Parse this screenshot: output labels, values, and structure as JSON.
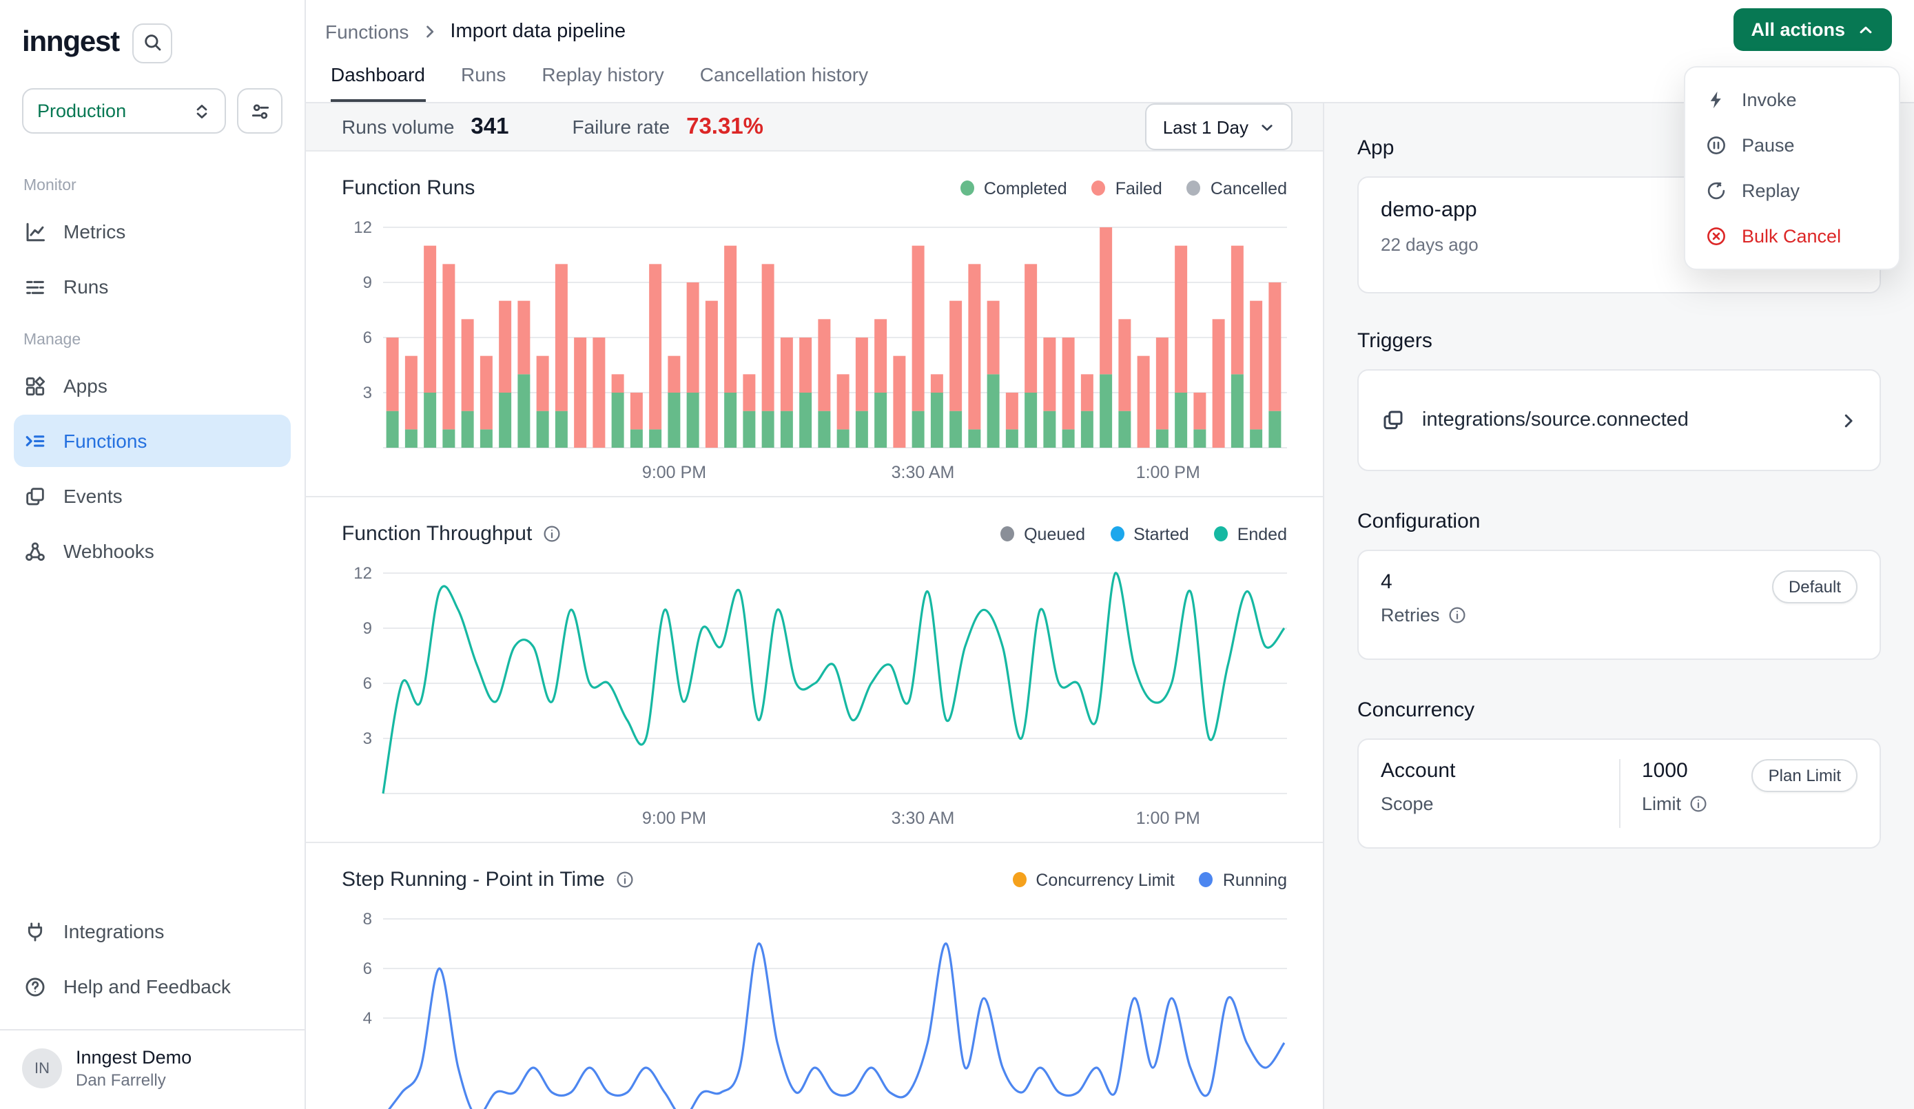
{
  "sidebar": {
    "logo_text": "inngest",
    "environment": "Production",
    "groups": [
      {
        "label": "Monitor",
        "items": [
          {
            "label": "Metrics"
          },
          {
            "label": "Runs"
          }
        ]
      },
      {
        "label": "Manage",
        "items": [
          {
            "label": "Apps"
          },
          {
            "label": "Functions"
          },
          {
            "label": "Events"
          },
          {
            "label": "Webhooks"
          }
        ]
      }
    ],
    "footer_items": [
      {
        "label": "Integrations"
      },
      {
        "label": "Help and Feedback"
      }
    ],
    "user": {
      "initials": "IN",
      "org": "Inngest Demo",
      "name": "Dan Farrelly"
    }
  },
  "header": {
    "breadcrumb": [
      "Functions",
      "Import data pipeline"
    ],
    "tabs": [
      "Dashboard",
      "Runs",
      "Replay history",
      "Cancellation history"
    ],
    "actions_button": "All actions"
  },
  "actions_menu": [
    {
      "label": "Invoke"
    },
    {
      "label": "Pause"
    },
    {
      "label": "Replay"
    },
    {
      "label": "Bulk Cancel",
      "danger": true
    }
  ],
  "stats": {
    "runs_volume_label": "Runs volume",
    "runs_volume": "341",
    "failure_rate_label": "Failure rate",
    "failure_rate": "73.31%",
    "time_range": "Last 1 Day"
  },
  "panel": {
    "app": {
      "heading": "App",
      "name": "demo-app",
      "synced": "22 days ago"
    },
    "triggers": {
      "heading": "Triggers",
      "event": "integrations/source.connected"
    },
    "configuration": {
      "heading": "Configuration",
      "retries_value": "4",
      "retries_label": "Retries",
      "badge": "Default"
    },
    "concurrency": {
      "heading": "Concurrency",
      "scope_value": "Account",
      "scope_label": "Scope",
      "limit_value": "1000",
      "limit_label": "Limit",
      "badge": "Plan Limit"
    }
  },
  "chart_data": [
    {
      "type": "bar",
      "title": "Function Runs",
      "ylim": [
        0,
        12
      ],
      "yticks": [
        3,
        6,
        9,
        12
      ],
      "x_ticks": [
        "9:00 PM",
        "3:30 AM",
        "1:00 PM"
      ],
      "x_tick_pos": [
        0.323,
        0.599,
        0.871
      ],
      "legend": [
        {
          "name": "Completed",
          "color": "#66BB8A"
        },
        {
          "name": "Failed",
          "color": "#F98F88"
        },
        {
          "name": "Cancelled",
          "color": "#AEB3BB"
        }
      ],
      "series": [
        {
          "name": "Completed",
          "color": "#66BB8A",
          "values": [
            2,
            1,
            3,
            1,
            2,
            1,
            3,
            4,
            2,
            2,
            0,
            0,
            3,
            1,
            1,
            3,
            3,
            0,
            3,
            2,
            2,
            2,
            3,
            2,
            1,
            2,
            3,
            0,
            2,
            3,
            2,
            1,
            4,
            1,
            3,
            2,
            1,
            2,
            4,
            2,
            0,
            1,
            3,
            1,
            0,
            4,
            1,
            2
          ]
        },
        {
          "name": "Failed",
          "color": "#F98F88",
          "values": [
            4,
            4,
            8,
            9,
            5,
            4,
            5,
            4,
            3,
            8,
            6,
            6,
            1,
            2,
            9,
            2,
            6,
            8,
            8,
            2,
            8,
            4,
            3,
            5,
            3,
            4,
            4,
            5,
            9,
            1,
            6,
            9,
            4,
            2,
            7,
            4,
            5,
            2,
            8,
            5,
            5,
            5,
            8,
            2,
            7,
            7,
            7,
            7
          ]
        }
      ]
    },
    {
      "type": "line",
      "title": "Function Throughput",
      "ylim": [
        0,
        12
      ],
      "yticks": [
        3,
        6,
        9,
        12
      ],
      "x_ticks": [
        "9:00 PM",
        "3:30 AM",
        "1:00 PM"
      ],
      "x_tick_pos": [
        0.323,
        0.599,
        0.871
      ],
      "legend": [
        {
          "name": "Queued",
          "color": "#8A8F98"
        },
        {
          "name": "Started",
          "color": "#1CA7EC"
        },
        {
          "name": "Ended",
          "color": "#16B8A2"
        }
      ],
      "series": [
        {
          "name": "Ended",
          "color": "#16B8A2",
          "values": [
            0,
            6,
            5,
            11,
            10,
            7,
            5,
            8,
            8,
            5,
            10,
            6,
            6,
            4,
            3,
            10,
            5,
            9,
            8,
            11,
            4,
            10,
            6,
            6,
            7,
            4,
            6,
            7,
            5,
            11,
            4,
            8,
            10,
            8,
            3,
            10,
            6,
            6,
            4,
            12,
            7,
            5,
            6,
            11,
            3,
            7,
            11,
            8,
            9
          ]
        }
      ]
    },
    {
      "type": "line",
      "title": "Step Running - Point in Time",
      "ylim": [
        0,
        8
      ],
      "yticks": [
        4,
        6,
        8
      ],
      "x_ticks": [],
      "x_tick_pos": [],
      "legend": [
        {
          "name": "Concurrency Limit",
          "color": "#F5A11C"
        },
        {
          "name": "Running",
          "color": "#4C86F0"
        }
      ],
      "series": [
        {
          "name": "Running",
          "color": "#4C86F0",
          "values": [
            0,
            1,
            2,
            6,
            2,
            0,
            1,
            1,
            2,
            1,
            1,
            2,
            1,
            1,
            2,
            1,
            0,
            1,
            1,
            2,
            7,
            3,
            1,
            2,
            1,
            1,
            2,
            1,
            1,
            3,
            7,
            2,
            4.8,
            2,
            1,
            2,
            1,
            1,
            2,
            1,
            4.8,
            2,
            4.8,
            2,
            1,
            4.8,
            3,
            2,
            3
          ]
        }
      ]
    }
  ]
}
